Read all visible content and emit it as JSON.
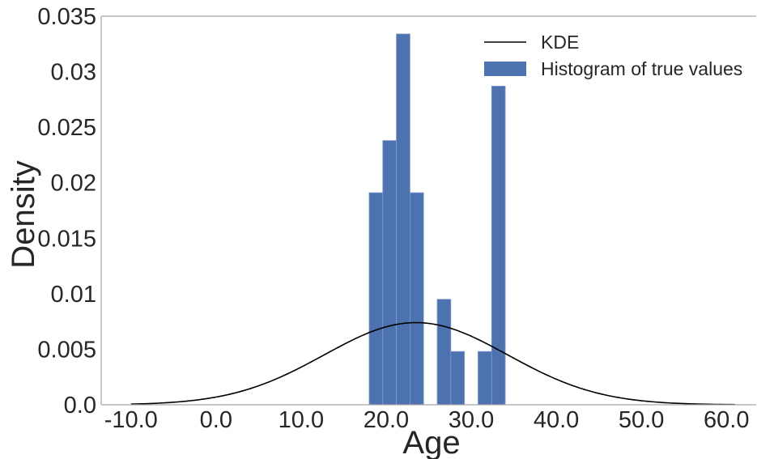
{
  "chart_data": {
    "type": "bar",
    "xlabel": "Age",
    "ylabel": "Density",
    "xlim": [
      -13.5,
      63.5
    ],
    "ylim": [
      0,
      0.035
    ],
    "xticks": [
      {
        "value": -10,
        "label": "-10.0"
      },
      {
        "value": 0,
        "label": "0.0"
      },
      {
        "value": 10,
        "label": "10.0"
      },
      {
        "value": 20,
        "label": "20.0"
      },
      {
        "value": 30,
        "label": "30.0"
      },
      {
        "value": 40,
        "label": "40.0"
      },
      {
        "value": 50,
        "label": "50.0"
      },
      {
        "value": 60,
        "label": "60.0"
      }
    ],
    "yticks": [
      {
        "value": 0,
        "label": "0.0"
      },
      {
        "value": 0.005,
        "label": "0.005"
      },
      {
        "value": 0.01,
        "label": "0.01"
      },
      {
        "value": 0.015,
        "label": "0.015"
      },
      {
        "value": 0.02,
        "label": "0.02"
      },
      {
        "value": 0.025,
        "label": "0.025"
      },
      {
        "value": 0.03,
        "label": "0.03"
      },
      {
        "value": 0.035,
        "label": "0.035"
      }
    ],
    "grid": false,
    "legend": {
      "position": "top-right",
      "entries": [
        {
          "label": "KDE",
          "kind": "line",
          "color": "#000000"
        },
        {
          "label": "Histogram of true values",
          "kind": "patch",
          "color": "#4c72b0"
        }
      ]
    },
    "histogram": {
      "name": "Histogram of true values",
      "color": "#4c72b0",
      "edgecolor": "#7f9bcc",
      "bins": [
        {
          "x0": 18.0,
          "x1": 19.6,
          "density": 0.0191
        },
        {
          "x0": 19.6,
          "x1": 21.2,
          "density": 0.0238
        },
        {
          "x0": 21.2,
          "x1": 22.8,
          "density": 0.0334
        },
        {
          "x0": 22.8,
          "x1": 24.4,
          "density": 0.0191
        },
        {
          "x0": 24.4,
          "x1": 26.0,
          "density": 0.0
        },
        {
          "x0": 26.0,
          "x1": 27.6,
          "density": 0.0095
        },
        {
          "x0": 27.6,
          "x1": 29.2,
          "density": 0.0048
        },
        {
          "x0": 29.2,
          "x1": 30.8,
          "density": 0.0
        },
        {
          "x0": 30.8,
          "x1": 32.4,
          "density": 0.0048
        },
        {
          "x0": 32.4,
          "x1": 34.0,
          "density": 0.0287
        }
      ]
    },
    "kde": {
      "name": "KDE",
      "color": "#000000",
      "x_min": -10.0,
      "x_max": 61.0,
      "peak_x": 23.5,
      "peak_y": 0.0074,
      "sigma": 10.8
    }
  }
}
